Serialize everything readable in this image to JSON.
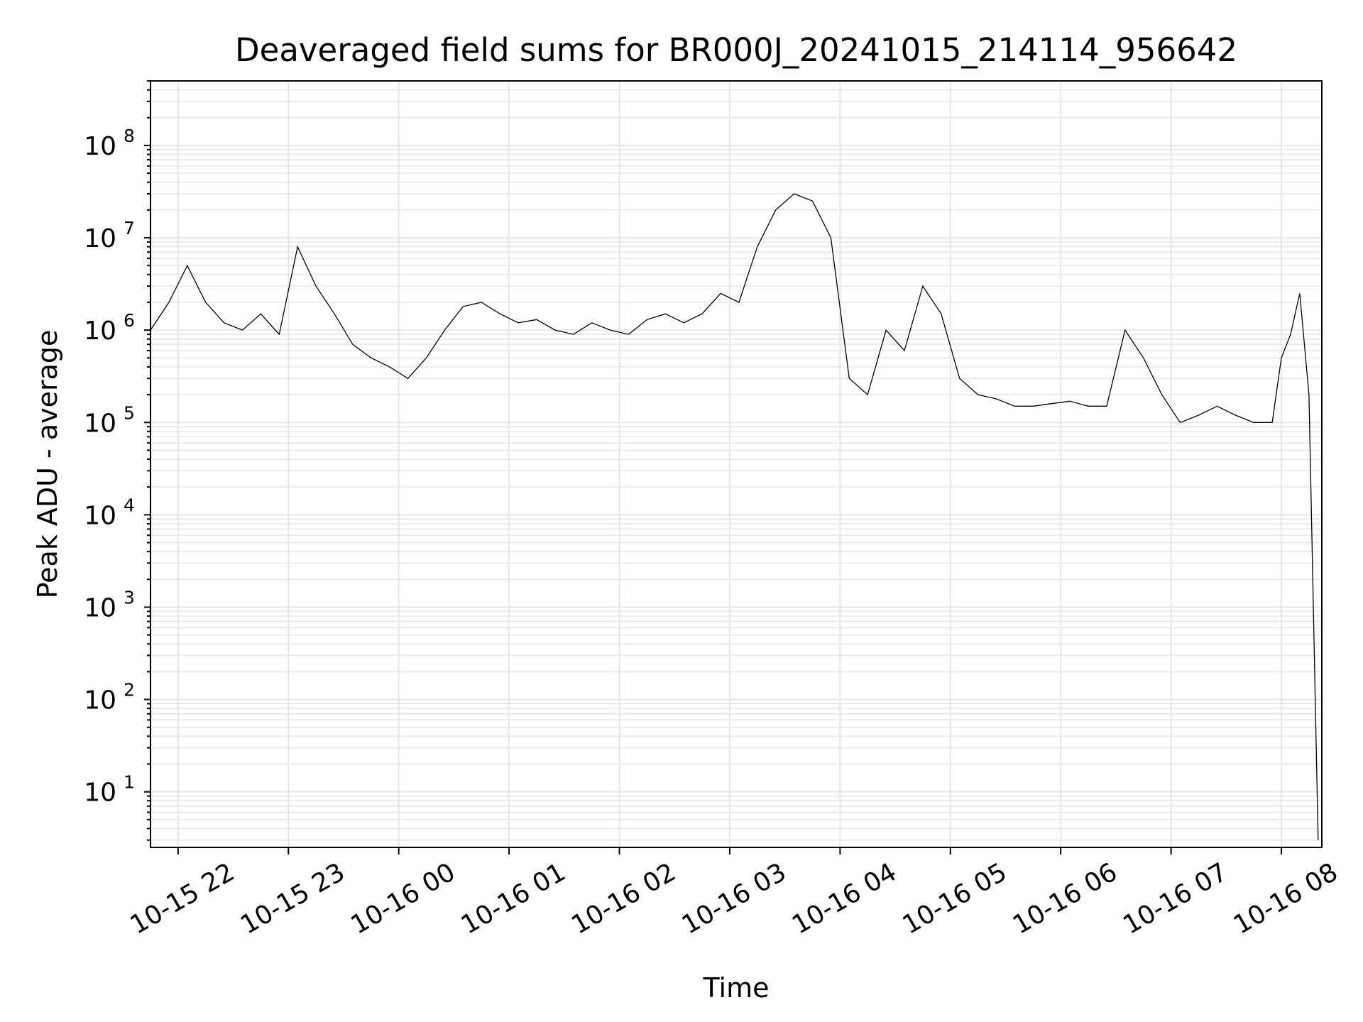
{
  "chart_data": {
    "type": "line",
    "title": "Deaveraged field sums for BR000J_20241015_214114_956642",
    "xlabel": "Time",
    "ylabel": "Peak ADU - average",
    "x_ticks": [
      "10-15 22",
      "10-15 23",
      "10-16 00",
      "10-16 01",
      "10-16 02",
      "10-16 03",
      "10-16 04",
      "10-16 05",
      "10-16 06",
      "10-16 07",
      "10-16 08"
    ],
    "x_range": [
      "10-15 21:45",
      "10-16 08:22"
    ],
    "y_scale": "log",
    "y_ticks": [
      {
        "base": "10",
        "exp": "1",
        "value": 10
      },
      {
        "base": "10",
        "exp": "2",
        "value": 100
      },
      {
        "base": "10",
        "exp": "3",
        "value": 1000
      },
      {
        "base": "10",
        "exp": "4",
        "value": 10000
      },
      {
        "base": "10",
        "exp": "5",
        "value": 100000
      },
      {
        "base": "10",
        "exp": "6",
        "value": 1000000
      },
      {
        "base": "10",
        "exp": "7",
        "value": 10000000
      },
      {
        "base": "10",
        "exp": "8",
        "value": 100000000
      }
    ],
    "ylim": [
      2.5,
      500000000
    ],
    "grid": true,
    "line_color": "#000000",
    "grid_color": "#e6e6e6",
    "series": [
      {
        "x": [
          "10-15 21:45",
          "10-15 21:55",
          "10-15 22:05",
          "10-15 22:15",
          "10-15 22:25",
          "10-15 22:35",
          "10-15 22:45",
          "10-15 22:55",
          "10-15 23:05",
          "10-15 23:15",
          "10-15 23:25",
          "10-15 23:35",
          "10-15 23:45",
          "10-15 23:55",
          "10-16 00:05",
          "10-16 00:15",
          "10-16 00:25",
          "10-16 00:35",
          "10-16 00:45",
          "10-16 00:55",
          "10-16 01:05",
          "10-16 01:15",
          "10-16 01:25",
          "10-16 01:35",
          "10-16 01:45",
          "10-16 01:55",
          "10-16 02:05",
          "10-16 02:15",
          "10-16 02:25",
          "10-16 02:35",
          "10-16 02:45",
          "10-16 02:55",
          "10-16 03:05",
          "10-16 03:15",
          "10-16 03:25",
          "10-16 03:35",
          "10-16 03:45",
          "10-16 03:55",
          "10-16 04:05",
          "10-16 04:15",
          "10-16 04:25",
          "10-16 04:35",
          "10-16 04:45",
          "10-16 04:55",
          "10-16 05:05",
          "10-16 05:15",
          "10-16 05:25",
          "10-16 05:35",
          "10-16 05:45",
          "10-16 05:55",
          "10-16 06:05",
          "10-16 06:15",
          "10-16 06:25",
          "10-16 06:35",
          "10-16 06:45",
          "10-16 06:55",
          "10-16 07:05",
          "10-16 07:15",
          "10-16 07:25",
          "10-16 07:35",
          "10-16 07:45",
          "10-16 07:55",
          "10-16 08:00",
          "10-16 08:05",
          "10-16 08:10",
          "10-16 08:15",
          "10-16 08:20"
        ],
        "y": [
          1000000,
          2000000,
          5000000,
          2000000,
          1200000,
          1000000,
          1500000,
          900000,
          8000000,
          3000000,
          1500000,
          700000,
          500000,
          400000,
          300000,
          500000,
          1000000,
          1800000,
          2000000,
          1500000,
          1200000,
          1300000,
          1000000,
          900000,
          1200000,
          1000000,
          900000,
          1300000,
          1500000,
          1200000,
          1500000,
          2500000,
          2000000,
          8000000,
          20000000,
          30000000,
          25000000,
          10000000,
          300000,
          200000,
          1000000,
          600000,
          3000000,
          1500000,
          300000,
          200000,
          180000,
          150000,
          150000,
          160000,
          170000,
          150000,
          150000,
          1000000,
          500000,
          200000,
          100000,
          120000,
          150000,
          120000,
          100000,
          100000,
          500000,
          900000,
          2500000,
          200000,
          3
        ]
      }
    ]
  }
}
